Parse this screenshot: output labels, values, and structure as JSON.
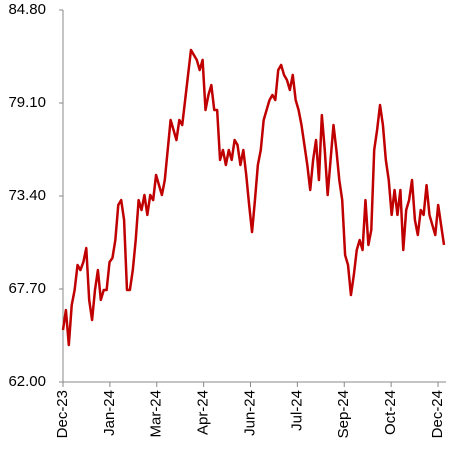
{
  "chart_data": {
    "type": "line",
    "xtick_labels": [
      "Dec-23",
      "Jan-24",
      "Mar-24",
      "Apr-24",
      "Jun-24",
      "Jul-24",
      "Sep-24",
      "Oct-24",
      "Dec-24"
    ],
    "series": [
      {
        "color": "#c00000",
        "values": [
          65.19,
          66.41,
          64.27,
          66.72,
          67.64,
          69.17,
          68.86,
          69.35,
          70.21,
          67.03,
          65.8,
          67.64,
          68.86,
          67.03,
          67.64,
          67.64,
          69.35,
          69.6,
          70.7,
          72.85,
          73.15,
          71.93,
          67.64,
          67.64,
          68.86,
          70.7,
          73.15,
          72.54,
          73.46,
          72.24,
          73.46,
          73.15,
          74.69,
          74.07,
          73.46,
          74.38,
          76.22,
          78.06,
          77.45,
          76.83,
          78.06,
          77.75,
          79.28,
          80.82,
          82.35,
          82.04,
          81.74,
          81.12,
          81.74,
          78.67,
          79.59,
          80.2,
          78.67,
          78.67,
          75.61,
          76.22,
          75.3,
          76.22,
          75.61,
          76.83,
          76.53,
          75.3,
          76.22,
          74.69,
          72.85,
          71.19,
          73.15,
          75.3,
          76.22,
          78.06,
          78.67,
          79.28,
          79.59,
          79.28,
          81.12,
          81.43,
          80.82,
          80.51,
          79.9,
          80.82,
          79.28,
          78.67,
          77.75,
          76.53,
          75.3,
          73.77,
          75.61,
          76.83,
          74.38,
          78.36,
          76.22,
          73.46,
          75.61,
          77.75,
          76.22,
          74.38,
          73.15,
          69.78,
          69.17,
          67.33,
          68.56,
          70.09,
          70.7,
          70.09,
          73.15,
          70.4,
          71.32,
          76.22,
          77.45,
          78.98,
          77.75,
          75.61,
          74.38,
          72.24,
          73.77,
          72.24,
          73.77,
          70.09,
          72.54,
          73.15,
          74.38,
          71.93,
          71.01,
          72.54,
          72.24,
          74.07,
          72.24,
          71.62,
          71.01,
          72.85,
          71.62,
          70.4
        ]
      }
    ],
    "ylim": [
      62,
      84.8
    ],
    "yticks": [
      {
        "value": 62,
        "label": "62.00"
      },
      {
        "value": 67.7,
        "label": "67.70"
      },
      {
        "value": 73.4,
        "label": "73.40"
      },
      {
        "value": 79.1,
        "label": "79.10"
      },
      {
        "value": 84.8,
        "label": "84.80"
      }
    ]
  }
}
